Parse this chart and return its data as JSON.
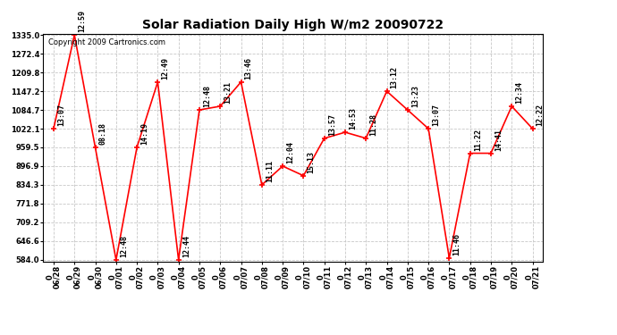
{
  "title": "Solar Radiation Daily High W/m2 20090722",
  "copyright": "Copyright 2009 Cartronics.com",
  "dates": [
    "06/28",
    "06/29",
    "06/30",
    "07/01",
    "07/02",
    "07/03",
    "07/04",
    "07/05",
    "07/06",
    "07/07",
    "07/08",
    "07/09",
    "07/10",
    "07/11",
    "07/12",
    "07/13",
    "07/14",
    "07/15",
    "07/16",
    "07/17",
    "07/18",
    "07/19",
    "07/20",
    "07/21"
  ],
  "values": [
    1022.1,
    1335.0,
    959.5,
    584.0,
    959.5,
    1178.0,
    584.0,
    1084.7,
    1097.0,
    1178.0,
    834.3,
    897.0,
    865.0,
    990.0,
    1010.0,
    990.0,
    1147.2,
    1084.7,
    1022.1,
    590.0,
    940.0,
    940.0,
    1097.0,
    1022.1
  ],
  "annotations": [
    "13:07",
    "12:59",
    "08:18",
    "12:48",
    "14:19",
    "12:49",
    "12:44",
    "12:48",
    "13:21",
    "13:46",
    "11:11",
    "12:04",
    "15:13",
    "13:57",
    "14:53",
    "11:28",
    "13:12",
    "13:23",
    "13:07",
    "11:46",
    "11:22",
    "14:41",
    "12:34",
    "12:22"
  ],
  "ymin": 584.0,
  "ymax": 1335.0,
  "yticks": [
    584.0,
    646.6,
    709.2,
    771.8,
    834.3,
    896.9,
    959.5,
    1022.1,
    1084.7,
    1147.2,
    1209.8,
    1272.4,
    1335.0
  ],
  "line_color": "#ff0000",
  "marker_color": "#ff0000",
  "background_color": "#ffffff",
  "grid_color": "#c8c8c8",
  "title_fontsize": 10,
  "annot_fontsize": 6,
  "tick_fontsize": 6,
  "copyright_fontsize": 6
}
